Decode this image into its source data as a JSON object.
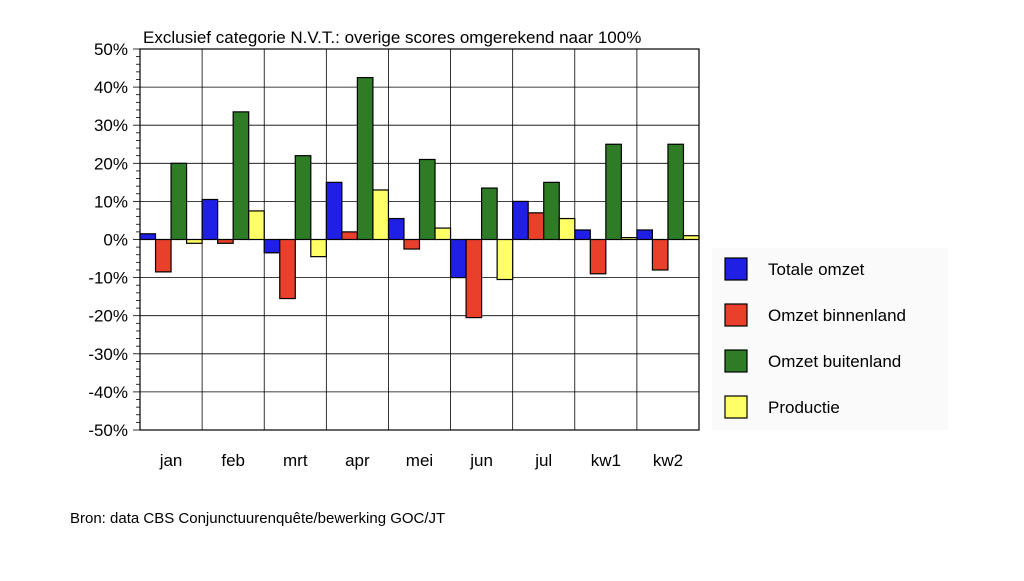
{
  "chart_data": {
    "type": "bar",
    "title": "Exclusief categorie N.V.T.: overige scores omgerekend naar 100%",
    "categories": [
      "jan",
      "feb",
      "mrt",
      "apr",
      "mei",
      "jun",
      "jul",
      "kw1",
      "kw2"
    ],
    "yticks": [
      "50%",
      "40%",
      "30%",
      "20%",
      "10%",
      "0%",
      "-10%",
      "-20%",
      "-30%",
      "-40%",
      "-50%"
    ],
    "ylim": [
      -50,
      50
    ],
    "grid": true,
    "legend_position": "right",
    "series": [
      {
        "name": "Totale omzet",
        "color": "#1f1fe6",
        "values": [
          1.5,
          10.5,
          -3.5,
          15,
          5.5,
          -10,
          10,
          2.5,
          2.5
        ]
      },
      {
        "name": "Omzet binnenland",
        "color": "#e8402a",
        "values": [
          -8.5,
          -1,
          -15.5,
          2,
          -2.5,
          -20.5,
          7,
          -9,
          -8
        ]
      },
      {
        "name": "Omzet buitenland",
        "color": "#2e7d26",
        "values": [
          20,
          33.5,
          22,
          42.5,
          21,
          13.5,
          15,
          25,
          25
        ]
      },
      {
        "name": "Productie",
        "color": "#ffff66",
        "values": [
          -1,
          7.5,
          -4.5,
          13,
          3,
          -10.5,
          5.5,
          0.5,
          1
        ]
      }
    ]
  },
  "source": "Bron: data CBS Conjunctuurenquête/bewerking GOC/JT"
}
